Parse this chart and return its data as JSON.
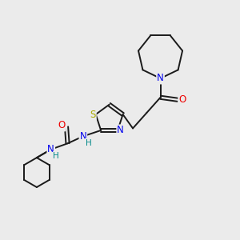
{
  "bg_color": "#ebebeb",
  "bond_color": "#1a1a1a",
  "bond_width": 1.4,
  "atom_colors": {
    "N": "#0000ee",
    "O": "#ee0000",
    "S": "#aaaa00",
    "H": "#008888",
    "C": "#1a1a1a"
  },
  "font_size_atom": 8.5,
  "font_size_H": 7.5
}
